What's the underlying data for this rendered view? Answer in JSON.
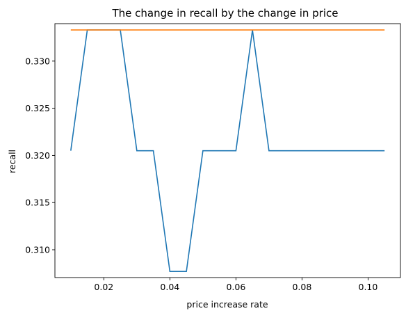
{
  "chart_data": {
    "type": "line",
    "title": "The change in recall by the change in price",
    "xlabel": "price increase rate",
    "ylabel": "recall",
    "xlim": [
      0.0052,
      0.1098
    ],
    "ylim": [
      0.30705,
      0.33397
    ],
    "xticks": [
      0.02,
      0.04,
      0.06,
      0.08,
      0.1
    ],
    "xtick_labels": [
      "0.02",
      "0.04",
      "0.06",
      "0.08",
      "0.10"
    ],
    "yticks": [
      0.31,
      0.315,
      0.32,
      0.325,
      0.33
    ],
    "ytick_labels": [
      "0.310",
      "0.315",
      "0.320",
      "0.325",
      "0.330"
    ],
    "grid": false,
    "legend": false,
    "x": [
      0.01,
      0.015,
      0.02,
      0.025,
      0.03,
      0.035,
      0.04,
      0.045,
      0.05,
      0.055,
      0.06,
      0.065,
      0.07,
      0.075,
      0.08,
      0.085,
      0.09,
      0.095,
      0.1,
      0.105
    ],
    "series": [
      {
        "color": "#1f77b4",
        "values": [
          0.3205,
          0.3333,
          0.3333,
          0.3333,
          0.3205,
          0.3205,
          0.3077,
          0.3077,
          0.3205,
          0.3205,
          0.3205,
          0.3333,
          0.3205,
          0.3205,
          0.3205,
          0.3205,
          0.3205,
          0.3205,
          0.3205,
          0.3205
        ]
      },
      {
        "color": "#ff7f0e",
        "values": [
          0.3333,
          0.3333,
          0.3333,
          0.3333,
          0.3333,
          0.3333,
          0.3333,
          0.3333,
          0.3333,
          0.3333,
          0.3333,
          0.3333,
          0.3333,
          0.3333,
          0.3333,
          0.3333,
          0.3333,
          0.3333,
          0.3333,
          0.3333
        ]
      }
    ]
  }
}
